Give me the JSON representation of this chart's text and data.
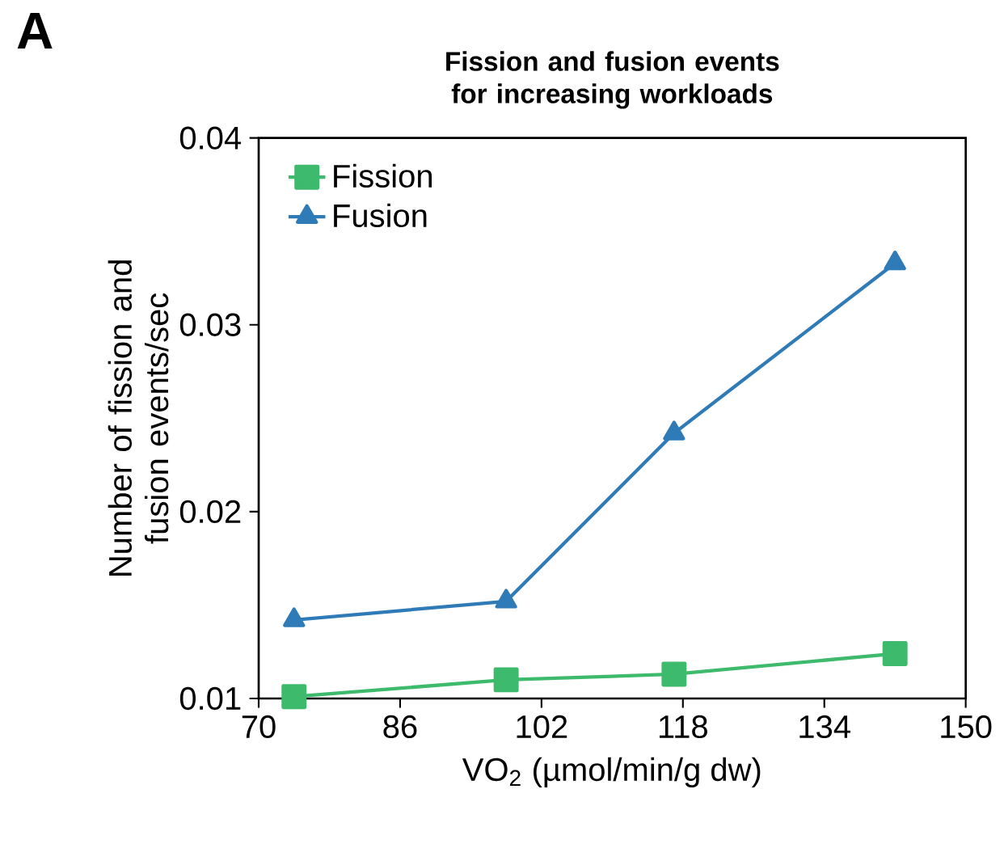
{
  "chart_data": {
    "type": "line",
    "title": "Fission and fusion events for increasing workloads",
    "xlabel": "VO$_{2}$ (µmol/min/g dw)",
    "ylabel": "Number of fission and fusion events/sec",
    "annotations": [
      "A"
    ],
    "x": [
      74,
      98,
      117,
      142
    ],
    "series": [
      {
        "name": "Fission",
        "color": "#3dba6c",
        "marker": "square",
        "values": [
          0.0101,
          0.011,
          0.0113,
          0.0124
        ]
      },
      {
        "name": "Fusion",
        "color": "#2e7bb8",
        "marker": "triangle",
        "values": [
          0.0142,
          0.0152,
          0.0242,
          0.0333
        ]
      }
    ],
    "xlim": [
      70,
      150
    ],
    "xticks": [
      70,
      86,
      102,
      118,
      134,
      150
    ],
    "ylim": [
      0.01,
      0.04
    ],
    "yticks": [
      0.01,
      0.02,
      0.03,
      0.04
    ],
    "grid": false,
    "legend": "top left",
    "line_style": "solid"
  }
}
